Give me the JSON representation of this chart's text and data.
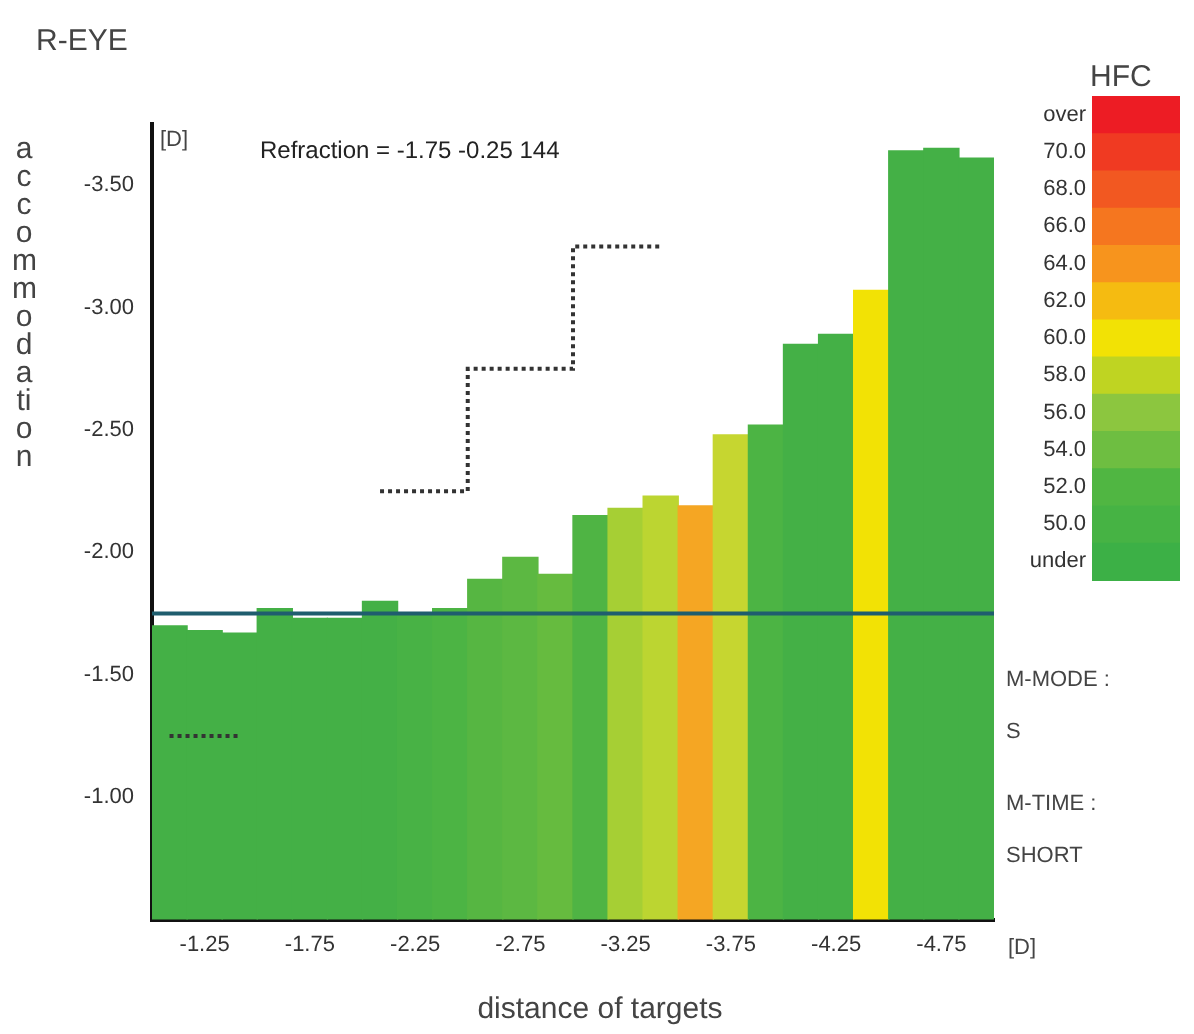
{
  "chart_data": {
    "type": "bar",
    "title": "R-EYE",
    "xlabel": "distance of targets",
    "ylabel": "accommodation",
    "clabel": "HFC",
    "categories": [
      null,
      "-1.25",
      null,
      null,
      "-1.75",
      null,
      null,
      "-2.25",
      null,
      null,
      "-2.75",
      null,
      null,
      "-3.25",
      null,
      null,
      "-3.75",
      null,
      null,
      "-4.25",
      null,
      null,
      "-4.75",
      null
    ],
    "series": [
      {
        "values": [
          -1.7,
          -1.68,
          -1.67,
          -1.77,
          -1.73,
          -1.73,
          -1.8,
          -1.75,
          -1.77,
          -1.89,
          -1.98,
          -1.91,
          -2.15,
          -2.18,
          -2.23,
          -2.19,
          -2.48,
          -2.52,
          -2.85,
          -2.89,
          -3.07,
          -3.64,
          -3.65,
          -3.61
        ],
        "colors": [
          "#44b046",
          "#44b046",
          "#44b046",
          "#44b046",
          "#44b046",
          "#44b046",
          "#44b046",
          "#48b245",
          "#4cb444",
          "#56b642",
          "#5cb842",
          "#66bb3f",
          "#4fb444",
          "#a6cf34",
          "#bcd531",
          "#f5a623",
          "#c6d630",
          "#4cb444",
          "#44b046",
          "#44b046",
          "#f2e205",
          "#44b046",
          "#44b046",
          "#44b046"
        ]
      },
      {
        "type": "step",
        "color": "#333333",
        "line_style": "dotted",
        "values": [
          -1.25,
          -1.25,
          -1.25,
          null,
          null,
          null,
          -2.25,
          -2.25,
          -2.25,
          -2.75,
          -2.75,
          -2.75,
          -3.25,
          -3.25,
          -3.25,
          null,
          null,
          null,
          null,
          null,
          null,
          null,
          null,
          null
        ]
      }
    ],
    "ylim": [
      -0.5,
      -3.75
    ],
    "yticks": [
      {
        "value": -3.5,
        "label": "-3.50"
      },
      {
        "value": -3.0,
        "label": "-3.00"
      },
      {
        "value": -2.5,
        "label": "-2.50"
      },
      {
        "value": -2.0,
        "label": "-2.00"
      },
      {
        "value": -1.5,
        "label": "-1.50"
      },
      {
        "value": -1.0,
        "label": "-1.00"
      }
    ],
    "ref_lines": [
      {
        "axis": "y",
        "value": -1.75,
        "color": "#1f5d6e"
      }
    ],
    "clim": [
      47,
      73
    ],
    "cticks": [
      {
        "value": 72,
        "label": "over"
      },
      {
        "value": 70,
        "label": "70.0"
      },
      {
        "value": 68,
        "label": "68.0"
      },
      {
        "value": 66,
        "label": "66.0"
      },
      {
        "value": 64,
        "label": "64.0"
      },
      {
        "value": 62,
        "label": "62.0"
      },
      {
        "value": 60,
        "label": "60.0"
      },
      {
        "value": 58,
        "label": "58.0"
      },
      {
        "value": 56,
        "label": "56.0"
      },
      {
        "value": 54,
        "label": "54.0"
      },
      {
        "value": 52,
        "label": "52.0"
      },
      {
        "value": 50,
        "label": "50.0"
      },
      {
        "value": 48,
        "label": "under"
      }
    ],
    "annotations": [
      "Refraction = -1.75 -0.25 144",
      "[D]",
      "[D]",
      "M-MODE :",
      "S",
      "M-TIME :",
      "SHORT"
    ],
    "legend": false
  }
}
